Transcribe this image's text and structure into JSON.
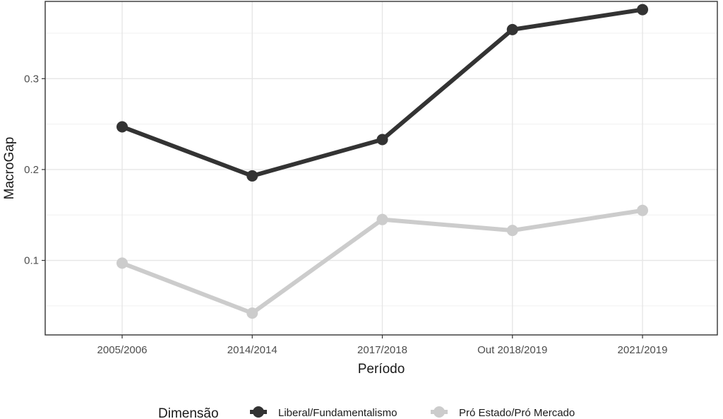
{
  "chart_data": {
    "type": "line",
    "title": "",
    "xlabel": "Período",
    "ylabel": "MacroGap",
    "categories": [
      "2005/2006",
      "2014/2014",
      "2017/2018",
      "Out 2018/2019",
      "2021/2019"
    ],
    "y_ticks": [
      "0.1",
      "0.2",
      "0.3"
    ],
    "ylim": [
      0.018,
      0.385
    ],
    "grid": true,
    "legend": {
      "title": "Dimensão",
      "position": "bottom"
    },
    "series": [
      {
        "name": "Liberal/Fundamentalismo",
        "color": "#333333",
        "values": [
          0.247,
          0.193,
          0.233,
          0.354,
          0.376
        ]
      },
      {
        "name": "Pró Estado/Pró Mercado",
        "color": "#cccccc",
        "values": [
          0.097,
          0.042,
          0.145,
          0.133,
          0.155
        ]
      }
    ]
  }
}
